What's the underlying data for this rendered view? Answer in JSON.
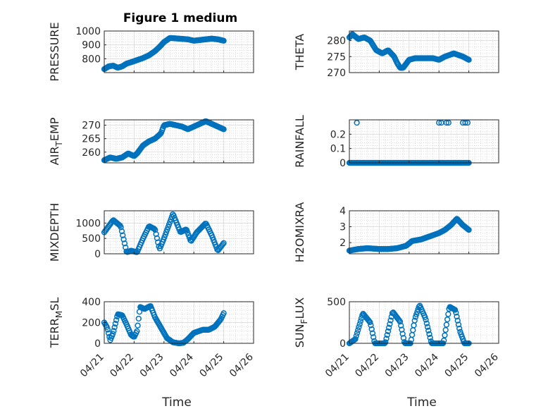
{
  "figure": {
    "title": "Figure 1 medium",
    "marker_color": "#0072bd",
    "x_ticks": [
      "04/21",
      "04/22",
      "04/23",
      "04/24",
      "04/25",
      "04/26"
    ],
    "x_label": "Time"
  },
  "chart_data": [
    {
      "type": "scatter",
      "name": "PRESSURE",
      "ylabel_parts": [
        "PRESSURE"
      ],
      "xlim": [
        0,
        5
      ],
      "ylim": [
        700,
        1000
      ],
      "yticks": [
        800,
        900,
        1000
      ],
      "grid": true,
      "minor_grid": true,
      "x_knots": [
        0,
        0.15,
        0.3,
        0.45,
        0.6,
        0.75,
        0.9,
        1.1,
        1.3,
        1.5,
        1.7,
        1.85,
        2.0,
        2.2,
        2.5,
        2.8,
        3.0,
        3.2,
        3.4,
        3.6,
        3.8,
        4.0
      ],
      "y_knots": [
        725,
        745,
        750,
        735,
        745,
        765,
        775,
        790,
        805,
        825,
        855,
        885,
        920,
        950,
        945,
        940,
        930,
        935,
        940,
        945,
        940,
        930
      ],
      "x_min": 0,
      "x_max": 4.0,
      "count": 160
    },
    {
      "type": "scatter",
      "name": "THETA",
      "ylabel_parts": [
        "THETA"
      ],
      "xlim": [
        0,
        5
      ],
      "ylim": [
        270,
        283
      ],
      "yticks": [
        270,
        275,
        280
      ],
      "grid": true,
      "minor_grid": true,
      "x_knots": [
        0,
        0.1,
        0.3,
        0.5,
        0.7,
        0.9,
        1.1,
        1.3,
        1.5,
        1.6,
        1.7,
        1.8,
        2.0,
        2.2,
        2.5,
        2.8,
        3.0,
        3.2,
        3.5,
        3.8,
        4.0
      ],
      "y_knots": [
        281,
        282,
        280.5,
        281,
        280,
        277,
        276,
        277,
        275,
        273,
        271.5,
        271.5,
        274,
        274.5,
        274.5,
        274.5,
        274,
        275,
        276,
        275,
        274
      ],
      "x_min": 0,
      "x_max": 4.0,
      "count": 160
    },
    {
      "type": "scatter",
      "name": "AIR_TEMP",
      "ylabel_parts": [
        "AIR",
        "T",
        "EMP"
      ],
      "xlim": [
        0,
        5
      ],
      "ylim": [
        256,
        272
      ],
      "yticks": [
        260,
        265,
        270
      ],
      "grid": true,
      "minor_grid": true,
      "x_knots": [
        0,
        0.2,
        0.4,
        0.6,
        0.8,
        1.0,
        1.1,
        1.3,
        1.5,
        1.7,
        1.9,
        2.0,
        2.2,
        2.4,
        2.6,
        2.8,
        3.0,
        3.2,
        3.4,
        3.6,
        3.8,
        4.0
      ],
      "y_knots": [
        257,
        258,
        257.5,
        258,
        259.5,
        258.5,
        259.5,
        262.5,
        264,
        265,
        267,
        270,
        270.5,
        270,
        269.5,
        268.5,
        269.5,
        270.5,
        271.5,
        270.5,
        269.5,
        268.5
      ],
      "x_min": 0,
      "x_max": 4.0,
      "count": 160
    },
    {
      "type": "scatter",
      "name": "RAINFALL",
      "ylabel_parts": [
        "RAINFALL"
      ],
      "xlim": [
        0,
        5
      ],
      "ylim": [
        0,
        0.3
      ],
      "yticks": [
        0,
        0.1,
        0.2
      ],
      "grid": true,
      "minor_grid": true,
      "x_knots": [
        0,
        4.0
      ],
      "y_knots": [
        0,
        0
      ],
      "x_min": 0,
      "x_max": 4.0,
      "count": 160,
      "extra_points": [
        [
          0.25,
          0.28
        ],
        [
          3.0,
          0.28
        ],
        [
          3.08,
          0.28
        ],
        [
          3.25,
          0.28
        ],
        [
          3.32,
          0.28
        ],
        [
          3.8,
          0.28
        ],
        [
          3.88,
          0.28
        ],
        [
          3.96,
          0.28
        ]
      ]
    },
    {
      "type": "scatter",
      "name": "MIXDEPTH",
      "ylabel_parts": [
        "MIXDEPTH"
      ],
      "xlim": [
        0,
        5
      ],
      "ylim": [
        0,
        1400
      ],
      "yticks": [
        0,
        500,
        1000
      ],
      "grid": true,
      "minor_grid": true,
      "x_knots": [
        0,
        0.3,
        0.55,
        0.75,
        0.9,
        1.1,
        1.3,
        1.5,
        1.7,
        1.85,
        2.0,
        2.3,
        2.55,
        2.75,
        2.9,
        3.1,
        3.4,
        3.6,
        3.8,
        4.0
      ],
      "y_knots": [
        700,
        1100,
        900,
        50,
        100,
        50,
        500,
        900,
        800,
        150,
        500,
        1300,
        700,
        800,
        400,
        700,
        1000,
        600,
        100,
        350
      ],
      "x_min": 0,
      "x_max": 4.0,
      "count": 130
    },
    {
      "type": "scatter",
      "name": "H2OMIXRA",
      "ylabel_parts": [
        "H2OMIXRA"
      ],
      "xlim": [
        0,
        5
      ],
      "ylim": [
        1.3,
        4
      ],
      "yticks": [
        2,
        3,
        4
      ],
      "grid": true,
      "minor_grid": true,
      "x_knots": [
        0,
        0.3,
        0.6,
        1.0,
        1.3,
        1.6,
        1.9,
        2.1,
        2.4,
        2.7,
        3.0,
        3.2,
        3.4,
        3.6,
        3.8,
        4.0
      ],
      "y_knots": [
        1.5,
        1.6,
        1.65,
        1.6,
        1.6,
        1.65,
        1.8,
        2.1,
        2.2,
        2.4,
        2.6,
        2.8,
        3.1,
        3.5,
        3.1,
        2.8
      ],
      "x_min": 0,
      "x_max": 4.0,
      "count": 160
    },
    {
      "type": "scatter",
      "name": "TERR_MSL",
      "ylabel_parts": [
        "TERR",
        "M",
        "SL"
      ],
      "xlim": [
        0,
        5
      ],
      "ylim": [
        0,
        400
      ],
      "yticks": [
        0,
        200,
        400
      ],
      "grid": true,
      "minor_grid": true,
      "x_knots": [
        0,
        0.1,
        0.2,
        0.3,
        0.45,
        0.6,
        0.75,
        0.9,
        1.0,
        1.1,
        1.2,
        1.35,
        1.55,
        1.7,
        1.9,
        2.1,
        2.3,
        2.5,
        2.65,
        2.8,
        3.0,
        3.3,
        3.5,
        3.7,
        3.9,
        4.0
      ],
      "y_knots": [
        200,
        150,
        30,
        100,
        280,
        270,
        180,
        80,
        60,
        120,
        350,
        330,
        360,
        250,
        150,
        50,
        10,
        0,
        5,
        40,
        100,
        130,
        130,
        160,
        230,
        290
      ],
      "x_min": 0,
      "x_max": 4.0,
      "count": 140
    },
    {
      "type": "scatter",
      "name": "SUN_FLUX",
      "ylabel_parts": [
        "SUN",
        "F",
        "LUX"
      ],
      "xlim": [
        0,
        5
      ],
      "ylim": [
        0,
        500
      ],
      "yticks": [
        0,
        500
      ],
      "grid": true,
      "minor_grid": true,
      "x_knots": [
        0,
        0.2,
        0.45,
        0.7,
        0.85,
        1.05,
        1.2,
        1.45,
        1.7,
        1.85,
        2.05,
        2.2,
        2.35,
        2.55,
        2.75,
        2.95,
        3.15,
        3.35,
        3.55,
        3.7,
        3.85,
        4.0
      ],
      "y_knots": [
        0,
        50,
        360,
        250,
        0,
        0,
        0,
        380,
        260,
        0,
        0,
        300,
        460,
        300,
        0,
        0,
        0,
        440,
        400,
        150,
        0,
        0
      ],
      "x_min": 0,
      "x_max": 4.0,
      "count": 140
    }
  ]
}
